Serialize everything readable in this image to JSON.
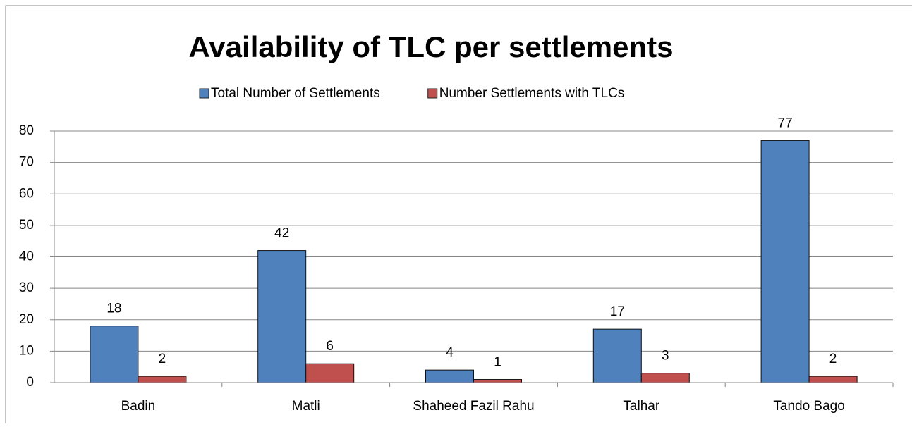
{
  "chart_data": {
    "type": "bar",
    "title": "Availability of TLC per settlements",
    "categories": [
      "Badin",
      "Matli",
      "Shaheed Fazil Rahu",
      "Talhar",
      "Tando Bago"
    ],
    "series": [
      {
        "name": "Total Number of Settlements",
        "color": "#4f81bd",
        "values": [
          18,
          42,
          4,
          17,
          77
        ]
      },
      {
        "name": "Number Settlements with TLCs",
        "color": "#c0504d",
        "values": [
          2,
          6,
          1,
          3,
          2
        ]
      }
    ],
    "ylim": [
      0,
      80
    ],
    "yticks": [
      0,
      10,
      20,
      30,
      40,
      50,
      60,
      70,
      80
    ],
    "grid": true,
    "legend": "top"
  }
}
